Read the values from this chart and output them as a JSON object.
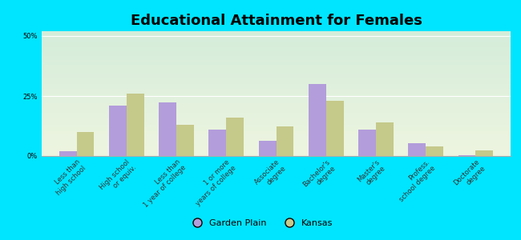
{
  "title": "Educational Attainment for Females",
  "categories": [
    "Less than\nhigh school",
    "High school\nor equiv.",
    "Less than\n1 year of college",
    "1 or more\nyears of college",
    "Associate\ndegree",
    "Bachelor's\ndegree",
    "Master's\ndegree",
    "Profess.\nschool degree",
    "Doctorate\ndegree"
  ],
  "garden_plain": [
    2.0,
    21.0,
    22.5,
    11.0,
    6.5,
    30.0,
    11.0,
    5.5,
    0.5
  ],
  "kansas": [
    10.0,
    26.0,
    13.0,
    16.0,
    12.5,
    23.0,
    14.0,
    4.0,
    2.5
  ],
  "bar_color_gp": "#b39ddb",
  "bar_color_ks": "#c5c98a",
  "background_outer": "#00e5ff",
  "background_inner_top": "#d4edda",
  "background_inner_bottom": "#eef5e0",
  "yticks": [
    0,
    25,
    50
  ],
  "ylim": [
    0,
    52
  ],
  "ylabel_labels": [
    "0%",
    "25%",
    "50%"
  ],
  "legend_gp": "Garden Plain",
  "legend_ks": "Kansas",
  "title_fontsize": 13,
  "tick_fontsize": 6.0
}
